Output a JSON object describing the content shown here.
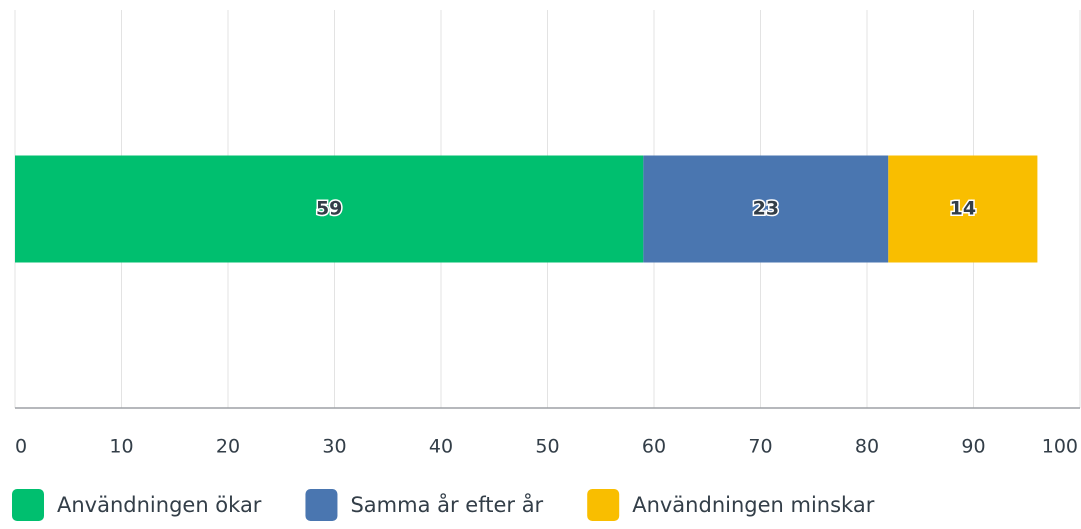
{
  "chart_data": {
    "type": "stacked_bar_horizontal",
    "categories": [
      null
    ],
    "series": [
      {
        "name": "Användningen ökar",
        "color": "#00bf6f",
        "values": [
          59
        ]
      },
      {
        "name": "Samma år efter år",
        "color": "#4a76b0",
        "values": [
          23
        ]
      },
      {
        "name": "Användningen minskar",
        "color": "#f9be00",
        "values": [
          14
        ]
      }
    ],
    "xlim": [
      0,
      100
    ],
    "xticks": [
      0,
      10,
      20,
      30,
      40,
      50,
      60,
      70,
      80,
      90,
      100
    ],
    "grid": true
  }
}
